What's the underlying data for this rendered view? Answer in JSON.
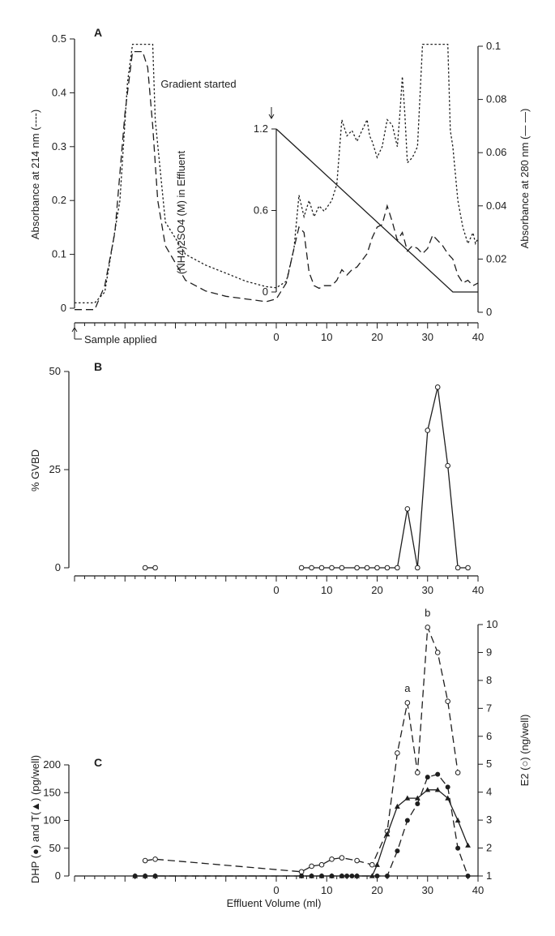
{
  "chart_data": [
    {
      "panel_label": "A",
      "type": "line",
      "x_ticks": [
        "0",
        "10",
        "20",
        "30",
        "40"
      ],
      "xlim": [
        -40,
        40
      ],
      "y_left": {
        "label": "Absorbance at 214 nm (----)",
        "ticks": [
          "0",
          "0.1",
          "0.2",
          "0.3",
          "0.4",
          "0.5"
        ],
        "lim": [
          0,
          0.5
        ]
      },
      "y_right": {
        "label": "Absorbance at 280 nm (— —)",
        "ticks": [
          "0",
          "0.02",
          "0.04",
          "0.06",
          "0.08",
          "0.1"
        ],
        "lim": [
          0,
          0.1
        ]
      },
      "y_inner": {
        "label": "(NH4)2SO4 (M) in Effluent",
        "ticks": [
          "0",
          "0.6",
          "1.2"
        ],
        "lim": [
          0,
          1.2
        ]
      },
      "annotations": {
        "gradient": "Gradient started",
        "sample": "Sample applied"
      },
      "series": [
        {
          "axis": "left",
          "style": "dotted",
          "x": [
            -40,
            -36,
            -34,
            -31,
            -29.5,
            -28.5,
            -28,
            -25.5,
            -24.5,
            -24,
            -22,
            -18,
            -14,
            -10,
            -6,
            -2,
            0,
            2,
            3.5,
            4.5,
            5.5,
            6.5,
            7.5,
            8.5,
            9.5,
            11,
            12,
            13,
            14,
            15,
            16,
            17,
            18,
            18.5,
            19,
            20,
            21,
            22,
            23,
            24,
            24.5,
            25,
            25.5,
            26,
            27,
            28,
            29,
            30,
            31,
            32,
            33,
            34,
            34.5,
            35,
            36,
            37,
            38,
            39,
            39.5,
            40
          ],
          "y": [
            0.01,
            0.01,
            0.03,
            0.2,
            0.42,
            0.49,
            0.49,
            0.49,
            0.49,
            0.35,
            0.16,
            0.1,
            0.08,
            0.065,
            0.05,
            0.04,
            0.038,
            0.05,
            0.11,
            0.21,
            0.17,
            0.2,
            0.17,
            0.19,
            0.18,
            0.2,
            0.23,
            0.35,
            0.32,
            0.33,
            0.31,
            0.33,
            0.35,
            0.32,
            0.31,
            0.28,
            0.3,
            0.35,
            0.34,
            0.3,
            0.36,
            0.43,
            0.36,
            0.27,
            0.28,
            0.3,
            0.49,
            0.49,
            0.49,
            0.49,
            0.49,
            0.49,
            0.33,
            0.3,
            0.2,
            0.15,
            0.12,
            0.14,
            0.12,
            0.13
          ]
        },
        {
          "axis": "right",
          "style": "dashed",
          "x": [
            -40,
            -36,
            -34,
            -32,
            -30,
            -28.5,
            -27.5,
            -26.5,
            -25.5,
            -24.5,
            -23.5,
            -22,
            -18,
            -14,
            -10,
            -6,
            -2,
            0,
            2,
            3.5,
            4.5,
            5.5,
            6.5,
            7.5,
            8.5,
            9.5,
            11,
            12,
            13,
            14,
            15,
            16,
            18,
            19,
            20,
            21,
            22,
            23,
            24,
            25,
            26,
            27,
            28,
            29,
            30,
            31,
            32,
            33,
            34,
            35,
            36,
            37,
            38,
            39,
            40
          ],
          "y": [
            0.001,
            0.001,
            0.01,
            0.03,
            0.075,
            0.098,
            0.098,
            0.098,
            0.092,
            0.07,
            0.042,
            0.025,
            0.012,
            0.008,
            0.006,
            0.005,
            0.004,
            0.005,
            0.011,
            0.024,
            0.032,
            0.03,
            0.015,
            0.01,
            0.009,
            0.01,
            0.01,
            0.012,
            0.016,
            0.014,
            0.016,
            0.017,
            0.022,
            0.028,
            0.032,
            0.033,
            0.04,
            0.034,
            0.027,
            0.03,
            0.023,
            0.025,
            0.024,
            0.022,
            0.024,
            0.029,
            0.027,
            0.025,
            0.022,
            0.02,
            0.014,
            0.011,
            0.012,
            0.01,
            0.011
          ]
        },
        {
          "axis": "inner",
          "style": "solid",
          "name": "gradient",
          "x": [
            0,
            35,
            40
          ],
          "y": [
            1.2,
            0,
            0
          ]
        }
      ]
    },
    {
      "panel_label": "B",
      "type": "line",
      "x_ticks": [
        "0",
        "10",
        "20",
        "30",
        "40"
      ],
      "xlim": [
        -40,
        40
      ],
      "y_left": {
        "label": "% GVBD",
        "ticks": [
          "0",
          "25",
          "50"
        ],
        "lim": [
          0,
          50
        ]
      },
      "series": [
        {
          "style": "solid",
          "marker": "open-circle",
          "x": [
            -26,
            -24
          ],
          "y": [
            0,
            0
          ]
        },
        {
          "style": "solid",
          "marker": "open-circle",
          "x": [
            5,
            7,
            9,
            11,
            13,
            16,
            18,
            20,
            22,
            24,
            26,
            28,
            30,
            32,
            34,
            36,
            38
          ],
          "y": [
            0,
            0,
            0,
            0,
            0,
            0,
            0,
            0,
            0,
            0,
            15,
            0,
            35,
            46,
            26,
            0,
            0
          ]
        }
      ]
    },
    {
      "panel_label": "C",
      "type": "line",
      "x_ticks": [
        "0",
        "10",
        "20",
        "30",
        "40"
      ],
      "xlim": [
        -40,
        40
      ],
      "xlabel": "Effluent Volume (ml)",
      "y_left": {
        "label": "DHP (●) and T(▲) (pg/well)",
        "ticks": [
          "0",
          "50",
          "100",
          "150",
          "200"
        ],
        "lim": [
          0,
          200
        ]
      },
      "y_right": {
        "label": "E2 (○) (ng/well)",
        "ticks": [
          "1",
          "2",
          "3",
          "4",
          "5",
          "6",
          "7",
          "8",
          "9",
          "10"
        ],
        "lim": [
          1,
          10
        ]
      },
      "point_labels": [
        {
          "text": "a",
          "x": 26,
          "y": 7.3,
          "axis": "right"
        },
        {
          "text": "b",
          "x": 30,
          "y": 10,
          "axis": "right"
        }
      ],
      "series": [
        {
          "axis": "right",
          "style": "dashed",
          "marker": "open-circle",
          "x": [
            -26,
            -24,
            5,
            7,
            9,
            11,
            13,
            16,
            19,
            22,
            24,
            26,
            28,
            30,
            32,
            34,
            36
          ],
          "y": [
            1.55,
            1.6,
            1.15,
            1.35,
            1.4,
            1.6,
            1.65,
            1.55,
            1.4,
            2.6,
            5.4,
            7.2,
            4.7,
            9.9,
            9,
            7.25,
            4.7
          ]
        },
        {
          "axis": "left",
          "style": "dashed",
          "marker": "filled-circle",
          "x": [
            -28,
            -26,
            -24,
            5,
            7,
            9,
            11,
            13,
            14,
            15,
            16,
            20,
            22,
            24,
            26,
            28,
            30,
            32,
            34,
            36,
            38
          ],
          "y": [
            0,
            0,
            0,
            0,
            0,
            0,
            0,
            0,
            0,
            0,
            0,
            0,
            0,
            45,
            100,
            130,
            178,
            183,
            160,
            50,
            0
          ]
        },
        {
          "axis": "left",
          "style": "solid",
          "marker": "filled-triangle",
          "x": [
            -28,
            -26,
            -24,
            5,
            7,
            9,
            11,
            13,
            16,
            19,
            20,
            22,
            24,
            26,
            28,
            30,
            32,
            34,
            36,
            38
          ],
          "y": [
            0,
            0,
            0,
            0,
            0,
            0,
            0,
            0,
            0,
            0,
            20,
            75,
            125,
            140,
            140,
            155,
            155,
            140,
            100,
            55
          ]
        }
      ]
    }
  ]
}
